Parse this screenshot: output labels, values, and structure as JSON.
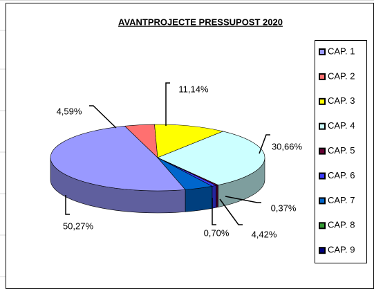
{
  "chart_data": {
    "type": "pie",
    "title": "AVANTPROJECTE PRESSUPOST 2020",
    "categories": [
      "CAP. 1",
      "CAP. 2",
      "CAP. 3",
      "CAP. 4",
      "CAP. 5",
      "CAP. 6",
      "CAP. 7",
      "CAP. 8",
      "CAP. 9"
    ],
    "values": [
      50.27,
      4.59,
      11.14,
      30.66,
      0.37,
      0.7,
      4.42,
      null,
      null
    ],
    "value_labels": [
      "50,27%",
      "4,59%",
      "11,14%",
      "30,66%",
      "0,37%",
      "0,70%",
      "4,42%",
      null,
      null
    ],
    "colors": [
      "#9999ff",
      "#ff7070",
      "#ffff00",
      "#ccffff",
      "#660033",
      "#3c3cff",
      "#0066cc",
      "#339933",
      "#000080"
    ],
    "legend": "right"
  }
}
